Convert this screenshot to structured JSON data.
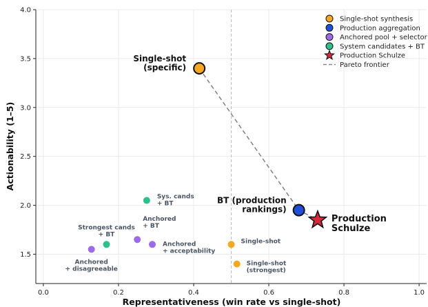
{
  "chart_data": {
    "type": "scatter",
    "xlabel": "Representativeness  (win rate vs single-shot)",
    "ylabel": "Actionability  (1–5)",
    "xlim": [
      -0.02,
      1.02
    ],
    "ylim": [
      1.2,
      4.0
    ],
    "x_ticks": [
      "0.0",
      "0.2",
      "0.4",
      "0.6",
      "0.8",
      "1.0"
    ],
    "y_ticks": [
      "1.5",
      "2.0",
      "2.5",
      "3.0",
      "3.5",
      "4.0"
    ],
    "grid": true,
    "reference_line_x": 0.5,
    "legend_position": "top-right",
    "series": [
      {
        "name": "Single-shot synthesis",
        "color": "#f5a623",
        "marker": "circle",
        "points": [
          {
            "x": 0.415,
            "y": 3.4,
            "label": [
              "Single-shot",
              "(specific)"
            ]
          },
          {
            "x": 0.5,
            "y": 1.6,
            "label": [
              "Single-shot"
            ]
          },
          {
            "x": 0.515,
            "y": 1.4,
            "label": [
              "Single-shot",
              "(strongest)"
            ]
          }
        ]
      },
      {
        "name": "Production aggregation",
        "color": "#1f4fd6",
        "marker": "circle",
        "points": [
          {
            "x": 0.68,
            "y": 1.95,
            "label": [
              "BT (production",
              "rankings)"
            ]
          }
        ]
      },
      {
        "name": "Anchored pool + selector",
        "color": "#9b6bea",
        "marker": "circle",
        "points": [
          {
            "x": 0.128,
            "y": 1.55,
            "label": [
              "Anchored",
              "+ disagreeable"
            ]
          },
          {
            "x": 0.25,
            "y": 1.65,
            "label": [
              "Anchored",
              "+ BT"
            ]
          },
          {
            "x": 0.29,
            "y": 1.6,
            "label": [
              "Anchored",
              "+ acceptability"
            ]
          }
        ]
      },
      {
        "name": "System candidates + BT",
        "color": "#2fbf8a",
        "marker": "circle",
        "points": [
          {
            "x": 0.168,
            "y": 1.6,
            "label": [
              "Strongest cands",
              "+ BT"
            ]
          },
          {
            "x": 0.275,
            "y": 2.05,
            "label": [
              "Sys. cands",
              "+ BT"
            ]
          }
        ]
      },
      {
        "name": "Production Schulze",
        "color": "#d62839",
        "marker": "star",
        "points": [
          {
            "x": 0.73,
            "y": 1.85,
            "label": [
              "Production",
              "Schulze"
            ]
          }
        ]
      }
    ],
    "pareto_frontier": {
      "name": "Pareto frontier",
      "color": "#888888",
      "points": [
        {
          "x": 0.415,
          "y": 3.4
        },
        {
          "x": 0.68,
          "y": 1.95
        },
        {
          "x": 0.73,
          "y": 1.85
        }
      ]
    }
  }
}
